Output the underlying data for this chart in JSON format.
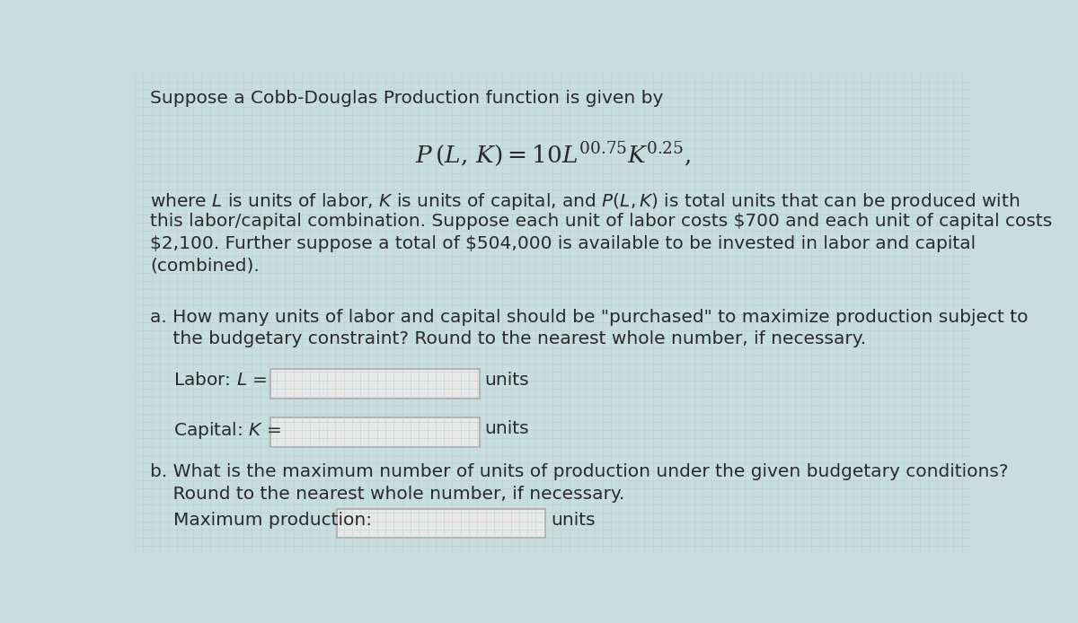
{
  "bg_color": "#c8dede",
  "text_color": "#2a2a2a",
  "box_color": "#e8e8e8",
  "box_edge_color": "#999999",
  "title_line": "Suppose a Cobb-Douglas Production function is given by",
  "part_a_line1": "a. How many units of labor and capital should be \"purchased\" to maximize production subject to",
  "part_a_line2": "    the budgetary constraint? Round to the nearest whole number, if necessary.",
  "labor_label_plain": "Labor: ",
  "labor_label_math": "$\\mathit{L}$",
  "labor_label_eq": " =",
  "capital_label_plain": "Capital: ",
  "capital_label_math": "$\\mathit{K}$",
  "capital_label_eq": " =",
  "units_label": "units",
  "part_b_line1": "b. What is the maximum number of units of production under the given budgetary conditions?",
  "part_b_line2": "    Round to the nearest whole number, if necessary.",
  "max_prod_label": "Maximum production:",
  "para_line1": "where $\\mathit{L}$ is units of labor, $\\mathit{K}$ is units of capital, and $P(L, K)$ is total units that can be produced with",
  "para_line2": "this labor/capital combination. Suppose each unit of labor costs \\$700 and each unit of capital costs",
  "para_line3": "\\$2,100. Further suppose a total of \\$504,000 is available to be invested in labor and capital",
  "para_line4": "(combined).",
  "font_size": 14.5
}
